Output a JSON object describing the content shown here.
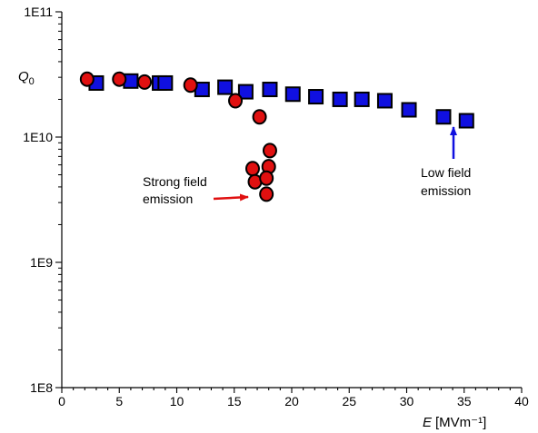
{
  "chart_data": {
    "type": "scatter",
    "title": "",
    "xlabel": "E [MVm⁻¹]",
    "xlabel_var": "E",
    "xlabel_unit": "[MVm⁻¹]",
    "ylabel": "Q0",
    "ylabel_var": "Q",
    "ylabel_sub": "0",
    "xlim": [
      0,
      40
    ],
    "ylim": [
      100000000,
      100000000000
    ],
    "yscale": "log",
    "grid": false,
    "x_ticks": [
      "0",
      "5",
      "10",
      "15",
      "20",
      "25",
      "30",
      "35",
      "40"
    ],
    "y_ticks": [
      "1E8",
      "1E9",
      "1E10",
      "1E11"
    ],
    "series": [
      {
        "marker": "square",
        "color": "#1010e0",
        "x": [
          3,
          6,
          8.5,
          9,
          12.2,
          14.2,
          16,
          18.1,
          20.1,
          22.1,
          24.2,
          26.1,
          28.1,
          30.2,
          33.2,
          35.2
        ],
        "y": [
          27000000000,
          28000000000,
          27000000000,
          27000000000,
          24000000000,
          25000000000,
          23000000000,
          24000000000,
          22000000000,
          21000000000,
          20000000000,
          20000000000,
          19500000000,
          16500000000,
          14500000000,
          13500000000
        ]
      },
      {
        "marker": "circle",
        "color": "#e01010",
        "x": [
          2.2,
          5,
          7.2,
          11.2,
          15.1,
          17.2,
          16.6,
          16.8,
          18.1,
          18,
          17.8,
          17.8
        ],
        "y": [
          29000000000,
          29000000000,
          27500000000,
          26000000000,
          19500000000,
          14500000000,
          5600000000,
          4400000000,
          7800000000,
          5800000000,
          4700000000,
          3500000000
        ]
      }
    ],
    "annotations": [
      {
        "id": "strong",
        "lines": [
          "Strong field",
          "emission"
        ],
        "arrow_color": "#e01010"
      },
      {
        "id": "low",
        "lines": [
          "Low field",
          "emission"
        ],
        "arrow_color": "#1010e0"
      }
    ]
  }
}
